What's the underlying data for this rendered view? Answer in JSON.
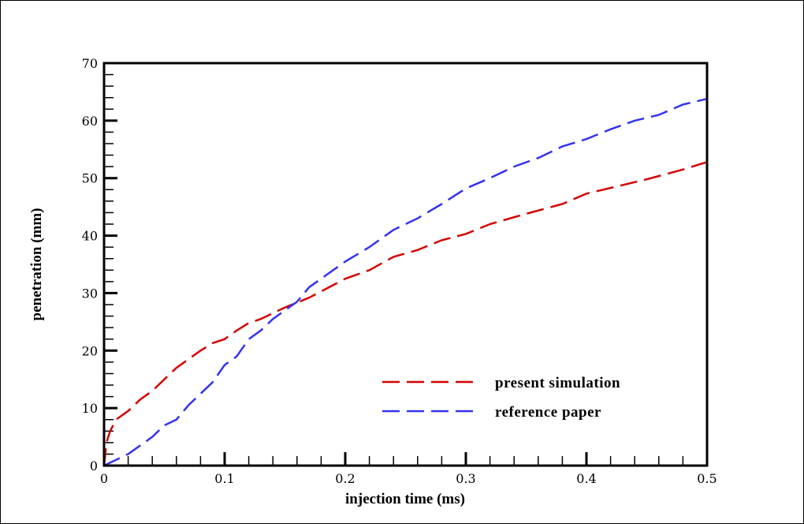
{
  "chart_data": {
    "type": "line",
    "title": "",
    "xlabel": "injection time (ms)",
    "ylabel": "penetration (mm)",
    "xlim": [
      0,
      0.5
    ],
    "ylim": [
      0,
      70
    ],
    "xticks": [
      "0",
      "0.1",
      "0.2",
      "0.3",
      "0.4",
      "0.5"
    ],
    "yticks": [
      "0",
      "10",
      "20",
      "30",
      "40",
      "50",
      "60",
      "70"
    ],
    "grid": false,
    "legend_position": "bottom-right",
    "series": [
      {
        "name": "present simulation",
        "color": "#d40000",
        "x": [
          0,
          0.002,
          0.005,
          0.01,
          0.02,
          0.03,
          0.04,
          0.05,
          0.06,
          0.07,
          0.08,
          0.09,
          0.1,
          0.11,
          0.12,
          0.13,
          0.14,
          0.15,
          0.17,
          0.2,
          0.22,
          0.24,
          0.26,
          0.28,
          0.3,
          0.32,
          0.35,
          0.38,
          0.4,
          0.42,
          0.45,
          0.48,
          0.5
        ],
        "y": [
          0,
          4,
          6,
          8,
          9.5,
          11.5,
          13,
          15,
          17,
          18.5,
          20,
          21.3,
          22,
          23.5,
          24.8,
          25.5,
          26.5,
          27.5,
          29.2,
          32.5,
          34,
          36.3,
          37.5,
          39.2,
          40.3,
          42,
          43.8,
          45.5,
          47.3,
          48.3,
          49.8,
          51.5,
          52.8
        ]
      },
      {
        "name": "reference paper",
        "color": "#3333ee",
        "x": [
          0,
          0.02,
          0.04,
          0.05,
          0.06,
          0.07,
          0.08,
          0.09,
          0.1,
          0.11,
          0.12,
          0.13,
          0.14,
          0.15,
          0.16,
          0.17,
          0.18,
          0.2,
          0.22,
          0.24,
          0.26,
          0.28,
          0.3,
          0.32,
          0.34,
          0.36,
          0.38,
          0.4,
          0.42,
          0.44,
          0.46,
          0.48,
          0.5
        ],
        "y": [
          0,
          2,
          5,
          7,
          8,
          10.5,
          12.5,
          14.5,
          17.5,
          19,
          22,
          23.5,
          25.5,
          27,
          28.5,
          31,
          32.5,
          35.5,
          38,
          41,
          43,
          45.5,
          48.2,
          50,
          52,
          53.5,
          55.5,
          56.8,
          58.5,
          60,
          61,
          62.8,
          63.8
        ]
      }
    ]
  }
}
